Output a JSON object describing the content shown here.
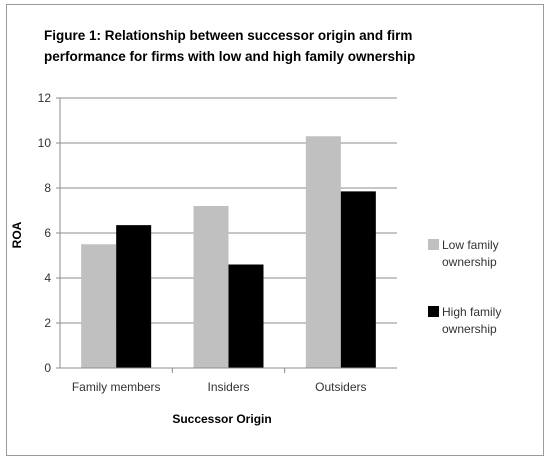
{
  "chart_data": {
    "type": "bar",
    "title": "Figure 1: Relationship between successor origin and firm performance for firms with low and high family ownership",
    "title_lines": [
      "Figure 1: Relationship between successor origin and firm",
      "performance for firms with low and high family ownership"
    ],
    "xlabel": "Successor Origin",
    "ylabel": "ROA",
    "categories": [
      "Family members",
      "Insiders",
      "Outsiders"
    ],
    "ylim": [
      0,
      12
    ],
    "yticks": [
      "0",
      "2",
      "4",
      "6",
      "8",
      "10",
      "12"
    ],
    "grid": true,
    "legend_position": "right",
    "series": [
      {
        "name": "Low family ownership",
        "name_lines": [
          "Low family",
          "ownership"
        ],
        "color": "#c0c0c0",
        "values": [
          5.5,
          7.2,
          10.3
        ]
      },
      {
        "name": "High family ownership",
        "name_lines": [
          "High family",
          "ownership"
        ],
        "color": "#000000",
        "values": [
          6.35,
          4.6,
          7.85
        ]
      }
    ]
  }
}
